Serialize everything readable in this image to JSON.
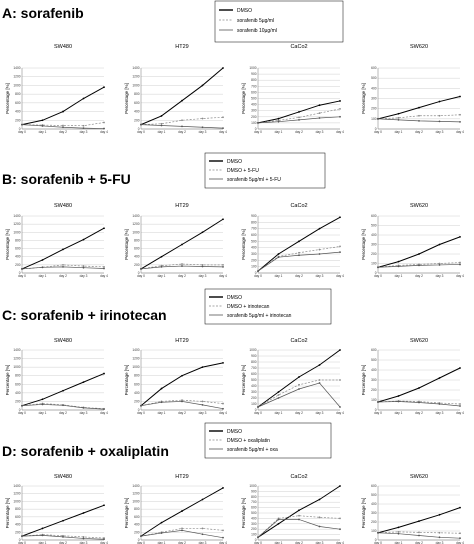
{
  "colors": {
    "control": "#000000",
    "treated": "#8a8a8a",
    "combo": "#555555",
    "grid": "#c4c4c4"
  },
  "sections": [
    {
      "title": "A: sorafenib",
      "legend": [
        "DMSO",
        "sorafenib 5µg/ml",
        "sorafenib 10µg/ml"
      ]
    },
    {
      "title": "B: sorafenib + 5-FU",
      "legend": [
        "DMSO",
        "DMSO + 5-FU",
        "sorafenib 5µg/ml + 5-FU"
      ]
    },
    {
      "title": "C: sorafenib + irinotecan",
      "legend": [
        "DMSO",
        "DMSO + irinotecan",
        "sorafenib 5µg/ml + irinotecan"
      ]
    },
    {
      "title": "D: sorafenib + oxaliplatin",
      "legend": [
        "DMSO",
        "DMSO + oxaliplatin",
        "sorafenib 5µg/ml + oxa"
      ]
    }
  ],
  "chart_data": [
    {
      "type": "line",
      "section": "A",
      "title": "SW480",
      "ylabel": "Percentage [%]",
      "categories": [
        "day 0",
        "day 1",
        "day 2",
        "day 3",
        "day 4"
      ],
      "ylim": [
        0,
        1400
      ],
      "yticks": [
        0,
        200,
        400,
        600,
        800,
        1000,
        1200,
        1400
      ],
      "series": [
        {
          "name": "DMSO",
          "values": [
            100,
            200,
            400,
            700,
            960
          ]
        },
        {
          "name": "sorafenib 5µg/ml",
          "values": [
            100,
            90,
            80,
            75,
            150
          ]
        },
        {
          "name": "sorafenib 10µg/ml",
          "values": [
            100,
            70,
            40,
            20,
            10
          ]
        }
      ]
    },
    {
      "type": "line",
      "section": "A",
      "title": "HT29",
      "ylabel": "Percentage [%]",
      "categories": [
        "day 0",
        "day 1",
        "day 2",
        "day 3",
        "day 4"
      ],
      "ylim": [
        0,
        1400
      ],
      "yticks": [
        0,
        200,
        400,
        600,
        800,
        1000,
        1200,
        1400
      ],
      "series": [
        {
          "name": "DMSO",
          "values": [
            100,
            300,
            650,
            1000,
            1420
          ]
        },
        {
          "name": "sorafenib 5µg/ml",
          "values": [
            100,
            120,
            200,
            240,
            270
          ]
        },
        {
          "name": "sorafenib 10µg/ml",
          "values": [
            100,
            80,
            60,
            40,
            20
          ]
        }
      ]
    },
    {
      "type": "line",
      "section": "A",
      "title": "CaCo2",
      "ylabel": "Percentage [%]",
      "categories": [
        "day 0",
        "day 1",
        "day 2",
        "day 3",
        "day 4"
      ],
      "ylim": [
        0,
        1000
      ],
      "yticks": [
        0,
        100,
        200,
        300,
        400,
        500,
        600,
        700,
        800,
        900,
        1000
      ],
      "series": [
        {
          "name": "DMSO",
          "values": [
            100,
            170,
            280,
            390,
            460
          ]
        },
        {
          "name": "sorafenib 5µg/ml",
          "values": [
            100,
            140,
            190,
            260,
            330
          ]
        },
        {
          "name": "sorafenib 10µg/ml",
          "values": [
            100,
            120,
            150,
            180,
            200
          ]
        }
      ]
    },
    {
      "type": "line",
      "section": "A",
      "title": "SW620",
      "ylabel": "Percentage [%]",
      "categories": [
        "day 0",
        "day 1",
        "day 2",
        "day 3",
        "day 4"
      ],
      "ylim": [
        0,
        600
      ],
      "yticks": [
        0,
        100,
        200,
        300,
        400,
        500,
        600
      ],
      "series": [
        {
          "name": "DMSO",
          "values": [
            100,
            150,
            210,
            270,
            320
          ]
        },
        {
          "name": "sorafenib 5µg/ml",
          "values": [
            100,
            110,
            130,
            130,
            140
          ]
        },
        {
          "name": "sorafenib 10µg/ml",
          "values": [
            100,
            90,
            80,
            75,
            70
          ]
        }
      ]
    },
    {
      "type": "line",
      "section": "B",
      "title": "SW480",
      "ylabel": "Percentage [%]",
      "categories": [
        "day 0",
        "day 1",
        "day 2",
        "day 3",
        "day 4"
      ],
      "ylim": [
        0,
        1400
      ],
      "yticks": [
        0,
        200,
        400,
        600,
        800,
        1000,
        1200,
        1400
      ],
      "series": [
        {
          "name": "DMSO",
          "values": [
            100,
            320,
            580,
            820,
            1100
          ]
        },
        {
          "name": "DMSO + 5-FU",
          "values": [
            100,
            140,
            200,
            170,
            150
          ]
        },
        {
          "name": "sorafenib 5µg/ml + 5-FU",
          "values": [
            100,
            140,
            150,
            130,
            110
          ]
        }
      ]
    },
    {
      "type": "line",
      "section": "B",
      "title": "HT29",
      "ylabel": "Percentage [%]",
      "categories": [
        "day 0",
        "day 1",
        "day 2",
        "day 3",
        "day 4"
      ],
      "ylim": [
        0,
        1400
      ],
      "yticks": [
        0,
        200,
        400,
        600,
        800,
        1000,
        1200,
        1400
      ],
      "series": [
        {
          "name": "DMSO",
          "values": [
            100,
            400,
            700,
            1000,
            1320
          ]
        },
        {
          "name": "DMSO + 5-FU",
          "values": [
            100,
            180,
            220,
            200,
            200
          ]
        },
        {
          "name": "sorafenib 5µg/ml + 5-FU",
          "values": [
            100,
            150,
            170,
            160,
            150
          ]
        }
      ]
    },
    {
      "type": "line",
      "section": "B",
      "title": "CaCo2",
      "ylabel": "Percentage [%]",
      "categories": [
        "day 0",
        "day 1",
        "day 2",
        "day 3",
        "day 4"
      ],
      "ylim": [
        0,
        900
      ],
      "yticks": [
        0,
        100,
        200,
        300,
        400,
        500,
        600,
        700,
        800,
        900
      ],
      "series": [
        {
          "name": "DMSO",
          "values": [
            30,
            300,
            500,
            700,
            880
          ]
        },
        {
          "name": "DMSO + 5-FU",
          "values": [
            30,
            260,
            320,
            370,
            420
          ]
        },
        {
          "name": "sorafenib 5µg/ml + 5-FU",
          "values": [
            30,
            250,
            280,
            300,
            330
          ]
        }
      ]
    },
    {
      "type": "line",
      "section": "B",
      "title": "SW620",
      "ylabel": "Percentage [%]",
      "categories": [
        "day 0",
        "day 1",
        "day 2",
        "day 3",
        "day 4"
      ],
      "ylim": [
        0,
        600
      ],
      "yticks": [
        0,
        100,
        200,
        300,
        400,
        500,
        600
      ],
      "series": [
        {
          "name": "DMSO",
          "values": [
            60,
            120,
            200,
            300,
            380
          ]
        },
        {
          "name": "DMSO + 5-FU",
          "values": [
            60,
            80,
            90,
            100,
            110
          ]
        },
        {
          "name": "sorafenib 5µg/ml + 5-FU",
          "values": [
            60,
            70,
            80,
            85,
            90
          ]
        }
      ]
    },
    {
      "type": "line",
      "section": "C",
      "title": "SW480",
      "ylabel": "Percentage [%]",
      "categories": [
        "day 0",
        "day 1",
        "day 2",
        "day 3",
        "day 4"
      ],
      "ylim": [
        0,
        1400
      ],
      "yticks": [
        0,
        200,
        400,
        600,
        800,
        1000,
        1200,
        1400
      ],
      "series": [
        {
          "name": "DMSO",
          "values": [
            100,
            250,
            450,
            650,
            850
          ]
        },
        {
          "name": "DMSO + irinotecan",
          "values": [
            100,
            150,
            120,
            60,
            30
          ]
        },
        {
          "name": "sorafenib 5µg/ml + irinotecan",
          "values": [
            100,
            130,
            110,
            50,
            20
          ]
        }
      ]
    },
    {
      "type": "line",
      "section": "C",
      "title": "HT29",
      "ylabel": "Percentage [%]",
      "categories": [
        "day 0",
        "day 1",
        "day 2",
        "day 3",
        "day 4"
      ],
      "ylim": [
        0,
        1400
      ],
      "yticks": [
        0,
        200,
        400,
        600,
        800,
        1000,
        1200,
        1400
      ],
      "series": [
        {
          "name": "DMSO",
          "values": [
            100,
            500,
            800,
            1000,
            1100
          ]
        },
        {
          "name": "DMSO + irinotecan",
          "values": [
            100,
            200,
            230,
            200,
            150
          ]
        },
        {
          "name": "sorafenib 5µg/ml + irinotecan",
          "values": [
            100,
            180,
            200,
            120,
            30
          ]
        }
      ]
    },
    {
      "type": "line",
      "section": "C",
      "title": "CaCo2",
      "ylabel": "Percentage [%]",
      "categories": [
        "day 0",
        "day 1",
        "day 2",
        "day 3",
        "day 4"
      ],
      "ylim": [
        0,
        1000
      ],
      "yticks": [
        0,
        100,
        200,
        300,
        400,
        500,
        600,
        700,
        800,
        900,
        1000
      ],
      "series": [
        {
          "name": "DMSO",
          "values": [
            50,
            300,
            550,
            750,
            1000
          ]
        },
        {
          "name": "DMSO + irinotecan",
          "values": [
            50,
            250,
            420,
            500,
            500
          ]
        },
        {
          "name": "sorafenib 5µg/ml + irinotecan",
          "values": [
            50,
            200,
            350,
            450,
            50
          ]
        }
      ]
    },
    {
      "type": "line",
      "section": "C",
      "title": "SW620",
      "ylabel": "Percentage [%]",
      "categories": [
        "day 0",
        "day 1",
        "day 2",
        "day 3",
        "day 4"
      ],
      "ylim": [
        0,
        600
      ],
      "yticks": [
        0,
        100,
        200,
        300,
        400,
        500,
        600
      ],
      "series": [
        {
          "name": "DMSO",
          "values": [
            80,
            140,
            220,
            320,
            420
          ]
        },
        {
          "name": "DMSO + irinotecan",
          "values": [
            80,
            90,
            85,
            70,
            60
          ]
        },
        {
          "name": "sorafenib 5µg/ml + irinotecan",
          "values": [
            80,
            85,
            75,
            60,
            40
          ]
        }
      ]
    },
    {
      "type": "line",
      "section": "D",
      "title": "SW480",
      "ylabel": "Percentage [%]",
      "categories": [
        "day 0",
        "day 1",
        "day 2",
        "day 3",
        "day 4"
      ],
      "ylim": [
        0,
        1400
      ],
      "yticks": [
        0,
        200,
        400,
        600,
        800,
        1000,
        1200,
        1400
      ],
      "series": [
        {
          "name": "DMSO",
          "values": [
            100,
            300,
            500,
            700,
            900
          ]
        },
        {
          "name": "DMSO + oxaliplatin",
          "values": [
            100,
            140,
            110,
            80,
            50
          ]
        },
        {
          "name": "sorafenib 5µg/ml + oxa",
          "values": [
            100,
            120,
            80,
            40,
            20
          ]
        }
      ]
    },
    {
      "type": "line",
      "section": "D",
      "title": "HT29",
      "ylabel": "Percentage [%]",
      "categories": [
        "day 0",
        "day 1",
        "day 2",
        "day 3",
        "day 4"
      ],
      "ylim": [
        0,
        1400
      ],
      "yticks": [
        0,
        200,
        400,
        600,
        800,
        1000,
        1200,
        1400
      ],
      "series": [
        {
          "name": "DMSO",
          "values": [
            100,
            450,
            750,
            1050,
            1350
          ]
        },
        {
          "name": "DMSO + oxaliplatin",
          "values": [
            100,
            200,
            300,
            300,
            250
          ]
        },
        {
          "name": "sorafenib 5µg/ml + oxa",
          "values": [
            100,
            180,
            250,
            150,
            60
          ]
        }
      ]
    },
    {
      "type": "line",
      "section": "D",
      "title": "CaCo2",
      "ylabel": "Percentage [%]",
      "categories": [
        "day 0",
        "day 1",
        "day 2",
        "day 3",
        "day 4"
      ],
      "ylim": [
        0,
        1000
      ],
      "yticks": [
        0,
        100,
        200,
        300,
        400,
        500,
        600,
        700,
        800,
        900,
        1000
      ],
      "series": [
        {
          "name": "DMSO",
          "values": [
            50,
            300,
            550,
            750,
            1000
          ]
        },
        {
          "name": "DMSO + oxaliplatin",
          "values": [
            50,
            400,
            450,
            420,
            400
          ]
        },
        {
          "name": "sorafenib 5µg/ml + oxa",
          "values": [
            50,
            380,
            380,
            250,
            200
          ]
        }
      ]
    },
    {
      "type": "line",
      "section": "D",
      "title": "SW620",
      "ylabel": "Percentage [%]",
      "categories": [
        "day 0",
        "day 1",
        "day 2",
        "day 3",
        "day 4"
      ],
      "ylim": [
        0,
        600
      ],
      "yticks": [
        0,
        100,
        200,
        300,
        400,
        500,
        600
      ],
      "series": [
        {
          "name": "DMSO",
          "values": [
            80,
            140,
            210,
            280,
            360
          ]
        },
        {
          "name": "DMSO + oxaliplatin",
          "values": [
            80,
            90,
            85,
            80,
            75
          ]
        },
        {
          "name": "sorafenib 5µg/ml + oxa",
          "values": [
            80,
            70,
            50,
            30,
            20
          ]
        }
      ]
    }
  ]
}
